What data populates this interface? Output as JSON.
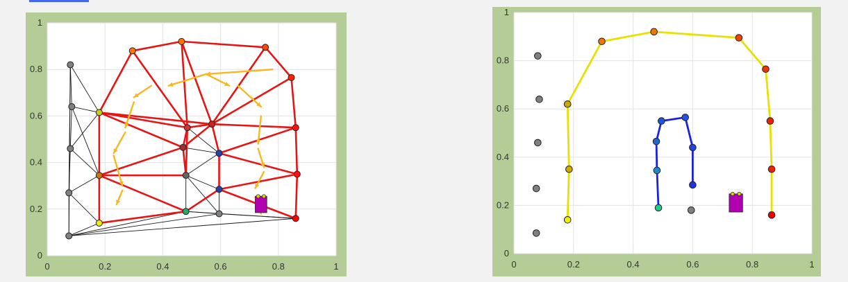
{
  "chart_data": [
    {
      "type": "scatter",
      "title": "",
      "xlabel": "",
      "ylabel": "",
      "xlim": [
        0,
        1
      ],
      "ylim": [
        0,
        1
      ],
      "grid": true,
      "x_ticks": [
        "0",
        "0.2",
        "0.4",
        "0.6",
        "0.8",
        "1"
      ],
      "y_ticks": [
        "0",
        "0.2",
        "0.4",
        "0.6",
        "0.8",
        "1"
      ],
      "nodes": [
        {
          "x": 0.08,
          "y": 0.82,
          "color": "#808080"
        },
        {
          "x": 0.085,
          "y": 0.64,
          "color": "#808080"
        },
        {
          "x": 0.08,
          "y": 0.46,
          "color": "#808080"
        },
        {
          "x": 0.075,
          "y": 0.27,
          "color": "#808080"
        },
        {
          "x": 0.075,
          "y": 0.085,
          "color": "#808080"
        },
        {
          "x": 0.18,
          "y": 0.615,
          "color": "#cccc00"
        },
        {
          "x": 0.18,
          "y": 0.345,
          "color": "#cc7700"
        },
        {
          "x": 0.18,
          "y": 0.14,
          "color": "#eeee00"
        },
        {
          "x": 0.295,
          "y": 0.88,
          "color": "#ff7700"
        },
        {
          "x": 0.465,
          "y": 0.92,
          "color": "#ff7700"
        },
        {
          "x": 0.755,
          "y": 0.895,
          "color": "#ff4400"
        },
        {
          "x": 0.845,
          "y": 0.765,
          "color": "#ff2200"
        },
        {
          "x": 0.485,
          "y": 0.55,
          "color": "#cc3333"
        },
        {
          "x": 0.57,
          "y": 0.565,
          "color": "#cc2222"
        },
        {
          "x": 0.47,
          "y": 0.465,
          "color": "#993333"
        },
        {
          "x": 0.595,
          "y": 0.44,
          "color": "#2244aa"
        },
        {
          "x": 0.48,
          "y": 0.345,
          "color": "#666666"
        },
        {
          "x": 0.595,
          "y": 0.285,
          "color": "#2244aa"
        },
        {
          "x": 0.48,
          "y": 0.19,
          "color": "#22aa66"
        },
        {
          "x": 0.595,
          "y": 0.18,
          "color": "#808080"
        },
        {
          "x": 0.86,
          "y": 0.55,
          "color": "#ff1111"
        },
        {
          "x": 0.865,
          "y": 0.35,
          "color": "#ff1111"
        },
        {
          "x": 0.86,
          "y": 0.16,
          "color": "#ff0000"
        }
      ],
      "black_edges": [
        [
          0,
          1
        ],
        [
          1,
          2
        ],
        [
          2,
          3
        ],
        [
          3,
          4
        ],
        [
          0,
          4
        ],
        [
          0,
          5
        ],
        [
          1,
          5
        ],
        [
          1,
          6
        ],
        [
          2,
          6
        ],
        [
          3,
          6
        ],
        [
          3,
          7
        ],
        [
          4,
          7
        ],
        [
          4,
          18
        ],
        [
          4,
          19
        ],
        [
          4,
          22
        ],
        [
          2,
          5
        ],
        [
          0,
          3
        ],
        [
          14,
          15
        ],
        [
          14,
          16
        ],
        [
          15,
          16
        ],
        [
          16,
          18
        ],
        [
          16,
          19
        ],
        [
          16,
          17
        ],
        [
          17,
          19
        ],
        [
          12,
          15
        ],
        [
          18,
          19
        ],
        [
          19,
          22
        ],
        [
          18,
          22
        ]
      ],
      "red_edges": [
        [
          5,
          8
        ],
        [
          8,
          9
        ],
        [
          9,
          10
        ],
        [
          10,
          11
        ],
        [
          11,
          20
        ],
        [
          20,
          21
        ],
        [
          21,
          22
        ],
        [
          8,
          12
        ],
        [
          9,
          12
        ],
        [
          9,
          13
        ],
        [
          10,
          13
        ],
        [
          11,
          13
        ],
        [
          13,
          20
        ],
        [
          12,
          13
        ],
        [
          5,
          12
        ],
        [
          5,
          14
        ],
        [
          5,
          6
        ],
        [
          6,
          14
        ],
        [
          6,
          16
        ],
        [
          6,
          7
        ],
        [
          7,
          18
        ],
        [
          6,
          18
        ],
        [
          14,
          12
        ],
        [
          14,
          13
        ],
        [
          15,
          13
        ],
        [
          15,
          20
        ],
        [
          15,
          21
        ],
        [
          17,
          15
        ],
        [
          17,
          21
        ],
        [
          17,
          22
        ],
        [
          17,
          18
        ],
        [
          12,
          16
        ],
        [
          14,
          16
        ],
        [
          5,
          13
        ]
      ],
      "flow_arrows": [
        {
          "from": [
            0.78,
            0.8
          ],
          "to": [
            0.55,
            0.78
          ]
        },
        {
          "from": [
            0.55,
            0.78
          ],
          "to": [
            0.42,
            0.73
          ]
        },
        {
          "from": [
            0.36,
            0.73
          ],
          "to": [
            0.3,
            0.68
          ]
        },
        {
          "from": [
            0.3,
            0.66
          ],
          "to": [
            0.27,
            0.55
          ]
        },
        {
          "from": [
            0.27,
            0.53
          ],
          "to": [
            0.23,
            0.44
          ]
        },
        {
          "from": [
            0.23,
            0.43
          ],
          "to": [
            0.26,
            0.3
          ]
        },
        {
          "from": [
            0.26,
            0.28
          ],
          "to": [
            0.24,
            0.22
          ]
        },
        {
          "from": [
            0.55,
            0.78
          ],
          "to": [
            0.63,
            0.73
          ]
        },
        {
          "from": [
            0.66,
            0.73
          ],
          "to": [
            0.74,
            0.64
          ]
        },
        {
          "from": [
            0.74,
            0.6
          ],
          "to": [
            0.73,
            0.48
          ]
        },
        {
          "from": [
            0.73,
            0.46
          ],
          "to": [
            0.75,
            0.38
          ]
        },
        {
          "from": [
            0.75,
            0.36
          ],
          "to": [
            0.72,
            0.29
          ]
        },
        {
          "from": [
            0.72,
            0.25
          ],
          "to": [
            0.74,
            0.18
          ]
        }
      ],
      "target": {
        "x": 0.74,
        "y": 0.22,
        "w": 0.04,
        "h": 0.07,
        "color": "#b000b0"
      }
    },
    {
      "type": "line",
      "title": "",
      "xlabel": "",
      "ylabel": "",
      "xlim": [
        0,
        1
      ],
      "ylim": [
        0,
        1
      ],
      "grid": true,
      "x_ticks": [
        "0",
        "0.2",
        "0.4",
        "0.6",
        "0.8",
        "1"
      ],
      "y_ticks": [
        "0",
        "0.2",
        "0.4",
        "0.6",
        "0.8",
        "1"
      ],
      "paths": [
        {
          "color": "#e8e000",
          "points": [
            [
              0.18,
              0.14
            ],
            [
              0.185,
              0.35
            ],
            [
              0.18,
              0.62
            ],
            [
              0.295,
              0.88
            ],
            [
              0.47,
              0.92
            ],
            [
              0.755,
              0.895
            ],
            [
              0.845,
              0.765
            ],
            [
              0.86,
              0.55
            ],
            [
              0.865,
              0.35
            ],
            [
              0.865,
              0.16
            ]
          ]
        },
        {
          "color": "#1a22e0",
          "points": [
            [
              0.485,
              0.19
            ],
            [
              0.48,
              0.345
            ],
            [
              0.478,
              0.465
            ],
            [
              0.495,
              0.55
            ],
            [
              0.575,
              0.565
            ],
            [
              0.6,
              0.44
            ],
            [
              0.6,
              0.285
            ]
          ]
        }
      ],
      "markers": [
        {
          "x": 0.08,
          "y": 0.82,
          "color": "#808080"
        },
        {
          "x": 0.085,
          "y": 0.64,
          "color": "#808080"
        },
        {
          "x": 0.08,
          "y": 0.46,
          "color": "#808080"
        },
        {
          "x": 0.075,
          "y": 0.27,
          "color": "#808080"
        },
        {
          "x": 0.075,
          "y": 0.085,
          "color": "#808080"
        },
        {
          "x": 0.595,
          "y": 0.18,
          "color": "#808080"
        },
        {
          "x": 0.18,
          "y": 0.14,
          "color": "#eeee00"
        },
        {
          "x": 0.185,
          "y": 0.35,
          "color": "#ccaa00"
        },
        {
          "x": 0.18,
          "y": 0.62,
          "color": "#ccaa00"
        },
        {
          "x": 0.295,
          "y": 0.88,
          "color": "#ee7700"
        },
        {
          "x": 0.47,
          "y": 0.92,
          "color": "#ee7700"
        },
        {
          "x": 0.755,
          "y": 0.895,
          "color": "#ee4400"
        },
        {
          "x": 0.845,
          "y": 0.765,
          "color": "#ee3300"
        },
        {
          "x": 0.86,
          "y": 0.55,
          "color": "#ee2200"
        },
        {
          "x": 0.865,
          "y": 0.35,
          "color": "#ee2200"
        },
        {
          "x": 0.865,
          "y": 0.16,
          "color": "#ee0000"
        },
        {
          "x": 0.485,
          "y": 0.19,
          "color": "#22cc88"
        },
        {
          "x": 0.48,
          "y": 0.345,
          "color": "#2288cc"
        },
        {
          "x": 0.478,
          "y": 0.465,
          "color": "#2266cc"
        },
        {
          "x": 0.495,
          "y": 0.55,
          "color": "#2255dd"
        },
        {
          "x": 0.575,
          "y": 0.565,
          "color": "#2255dd"
        },
        {
          "x": 0.6,
          "y": 0.44,
          "color": "#2244dd"
        },
        {
          "x": 0.6,
          "y": 0.285,
          "color": "#2233dd"
        }
      ],
      "target": {
        "x": 0.745,
        "y": 0.21,
        "w": 0.045,
        "h": 0.075,
        "color": "#b000b0"
      }
    }
  ]
}
